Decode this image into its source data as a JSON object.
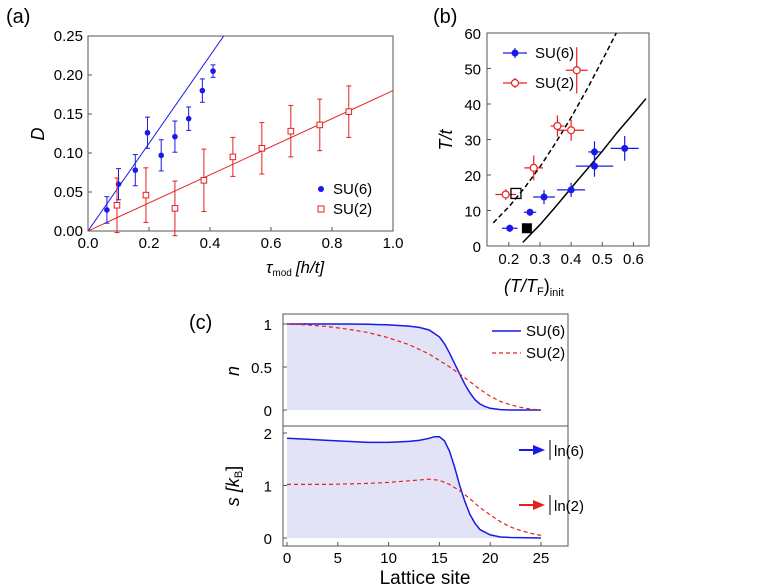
{
  "panels": {
    "a": "(a)",
    "b": "(b)",
    "c": "(c)"
  },
  "colors": {
    "blue": "#1a1ae6",
    "red": "#e62020",
    "fill": "#e3e3f8"
  },
  "chart_data": [
    {
      "panel": "a",
      "type": "scatter",
      "ylabel": "D",
      "xlabel_main": "τ",
      "xlabel_sub": "mod",
      "xlabel_unit": "[h/t]",
      "xlim": [
        0,
        1.0
      ],
      "ylim": [
        0,
        0.25
      ],
      "xticks": [
        "0.0",
        "0.2",
        "0.4",
        "0.6",
        "0.8",
        "1.0"
      ],
      "yticks": [
        "0.00",
        "0.05",
        "0.10",
        "0.15",
        "0.20",
        "0.25"
      ],
      "legend_position": "bottom-right",
      "series": [
        {
          "name": "SU(6)",
          "marker": "filled-circle",
          "color": "blue",
          "x": [
            0.062,
            0.1,
            0.155,
            0.195,
            0.24,
            0.285,
            0.33,
            0.375,
            0.41
          ],
          "y": [
            0.027,
            0.06,
            0.078,
            0.126,
            0.097,
            0.121,
            0.144,
            0.18,
            0.205
          ],
          "err": [
            0.017,
            0.02,
            0.02,
            0.02,
            0.02,
            0.02,
            0.015,
            0.015,
            0.008
          ],
          "fit": [
            [
              0,
              0
            ],
            [
              0.445,
              0.25
            ]
          ]
        },
        {
          "name": "SU(2)",
          "marker": "open-square",
          "color": "red",
          "x": [
            0.095,
            0.19,
            0.285,
            0.38,
            0.475,
            0.57,
            0.665,
            0.76,
            0.855
          ],
          "y": [
            0.033,
            0.046,
            0.029,
            0.065,
            0.095,
            0.106,
            0.128,
            0.136,
            0.153
          ],
          "err": [
            0.035,
            0.035,
            0.035,
            0.04,
            0.025,
            0.033,
            0.033,
            0.033,
            0.033
          ],
          "fit": [
            [
              0,
              0
            ],
            [
              1.0,
              0.18
            ]
          ]
        }
      ]
    },
    {
      "panel": "b",
      "type": "scatter",
      "ylabel": "T/t",
      "xlabel_main": "(T/T",
      "xlabel_sub1": "F",
      "xlabel_close": ")",
      "xlabel_sub2": "init",
      "xlim": [
        0.13,
        0.65
      ],
      "ylim": [
        0,
        60
      ],
      "xticks": [
        "0.2",
        "0.3",
        "0.4",
        "0.5",
        "0.6"
      ],
      "yticks": [
        "0",
        "10",
        "20",
        "30",
        "40",
        "50",
        "60"
      ],
      "legend_position": "top-left",
      "series": [
        {
          "name": "SU(6)",
          "marker": "filled-circle",
          "color": "blue",
          "x": [
            0.203,
            0.268,
            0.313,
            0.4,
            0.475,
            0.475,
            0.572
          ],
          "y": [
            5.0,
            9.5,
            13.8,
            15.8,
            22.5,
            26.5,
            27.5
          ],
          "yerr": [
            1,
            1,
            2,
            2,
            3,
            3,
            3.5
          ],
          "xerr": [
            0.025,
            0.02,
            0.035,
            0.045,
            0.06,
            0.02,
            0.045
          ]
        },
        {
          "name": "SU(2)",
          "marker": "open-circle",
          "color": "red",
          "x": [
            0.19,
            0.28,
            0.356,
            0.4,
            0.418
          ],
          "y": [
            14.5,
            22.0,
            33.8,
            32.6,
            49.5
          ],
          "yerr": [
            1.5,
            3.5,
            3,
            3,
            6.5
          ],
          "xerr": [
            0.033,
            0.03,
            0.022,
            0.042,
            0.035
          ]
        }
      ],
      "curves": [
        {
          "style": "dashed",
          "points": [
            [
              0.15,
              6.5
            ],
            [
              0.2,
              11.0
            ],
            [
              0.25,
              16.3
            ],
            [
              0.3,
              22.3
            ],
            [
              0.35,
              29.0
            ],
            [
              0.4,
              36.2
            ],
            [
              0.45,
              44.0
            ],
            [
              0.5,
              52.3
            ],
            [
              0.545,
              60.0
            ]
          ]
        },
        {
          "style": "solid",
          "points": [
            [
              0.245,
              1.0
            ],
            [
              0.3,
              6.0
            ],
            [
              0.35,
              11.0
            ],
            [
              0.4,
              16.3
            ],
            [
              0.45,
              21.5
            ],
            [
              0.5,
              26.7
            ],
            [
              0.55,
              32.2
            ],
            [
              0.6,
              37.3
            ],
            [
              0.64,
              41.5
            ]
          ]
        }
      ],
      "open_square": [
        0.223,
        14.8
      ],
      "filled_square": [
        0.258,
        5.0
      ]
    },
    {
      "panel": "c-top",
      "type": "line",
      "ylabel": "n",
      "xlim": [
        0,
        25.5
      ],
      "ylim": [
        0,
        1.08
      ],
      "yticks": [
        "0",
        "0.5",
        "1"
      ],
      "legend_position": "top-right",
      "series": [
        {
          "name": "SU(6)",
          "style": "solid",
          "color": "blue",
          "x": [
            0,
            2,
            4,
            6,
            8,
            10,
            12,
            13,
            14,
            15,
            15.5,
            16,
            16.5,
            17,
            17.5,
            18,
            18.5,
            19,
            19.5,
            20,
            21,
            22,
            25
          ],
          "y": [
            1.0,
            1.0,
            1.0,
            1.0,
            0.997,
            0.99,
            0.975,
            0.96,
            0.93,
            0.85,
            0.77,
            0.66,
            0.54,
            0.42,
            0.3,
            0.2,
            0.12,
            0.07,
            0.04,
            0.02,
            0.005,
            0,
            0
          ]
        },
        {
          "name": "SU(2)",
          "style": "dashed",
          "color": "red",
          "x": [
            0,
            2,
            4,
            6,
            8,
            10,
            12,
            14,
            16,
            17,
            18,
            19,
            20,
            21,
            22,
            23,
            24,
            25
          ],
          "y": [
            1.0,
            0.99,
            0.97,
            0.94,
            0.9,
            0.84,
            0.76,
            0.65,
            0.5,
            0.42,
            0.33,
            0.24,
            0.16,
            0.1,
            0.06,
            0.03,
            0.01,
            0
          ]
        }
      ]
    },
    {
      "panel": "c-bottom",
      "type": "line",
      "ylabel_main": "s [k",
      "ylabel_sub": "B",
      "ylabel_close": "]",
      "xlabel": "Lattice site",
      "xlim": [
        0,
        25.5
      ],
      "ylim": [
        -0.1,
        2.22
      ],
      "xticks": [
        "0",
        "5",
        "10",
        "15",
        "20",
        "25"
      ],
      "yticks": [
        "0",
        "1",
        "2"
      ],
      "series": [
        {
          "style": "solid",
          "color": "blue",
          "x": [
            0,
            2,
            4,
            6,
            8,
            10,
            12,
            13,
            14,
            14.5,
            15,
            15.5,
            16,
            16.5,
            17,
            17.5,
            18,
            18.5,
            19,
            20,
            21,
            22,
            25
          ],
          "y": [
            1.9,
            1.88,
            1.86,
            1.84,
            1.82,
            1.82,
            1.84,
            1.86,
            1.9,
            1.93,
            1.93,
            1.85,
            1.65,
            1.35,
            1.0,
            0.7,
            0.45,
            0.28,
            0.16,
            0.06,
            0.02,
            0.01,
            0
          ]
        },
        {
          "style": "dashed",
          "color": "red",
          "x": [
            0,
            2,
            4,
            6,
            8,
            10,
            12,
            14,
            15,
            16,
            17,
            18,
            19,
            20,
            21,
            22,
            23,
            24,
            25
          ],
          "y": [
            1.02,
            1.02,
            1.02,
            1.03,
            1.04,
            1.06,
            1.09,
            1.12,
            1.1,
            1.02,
            0.9,
            0.75,
            0.58,
            0.44,
            0.31,
            0.21,
            0.14,
            0.09,
            0.05
          ]
        }
      ],
      "arrows": [
        {
          "label": "ln(6)",
          "color": "blue"
        },
        {
          "label": "ln(2)",
          "color": "red"
        }
      ]
    }
  ]
}
